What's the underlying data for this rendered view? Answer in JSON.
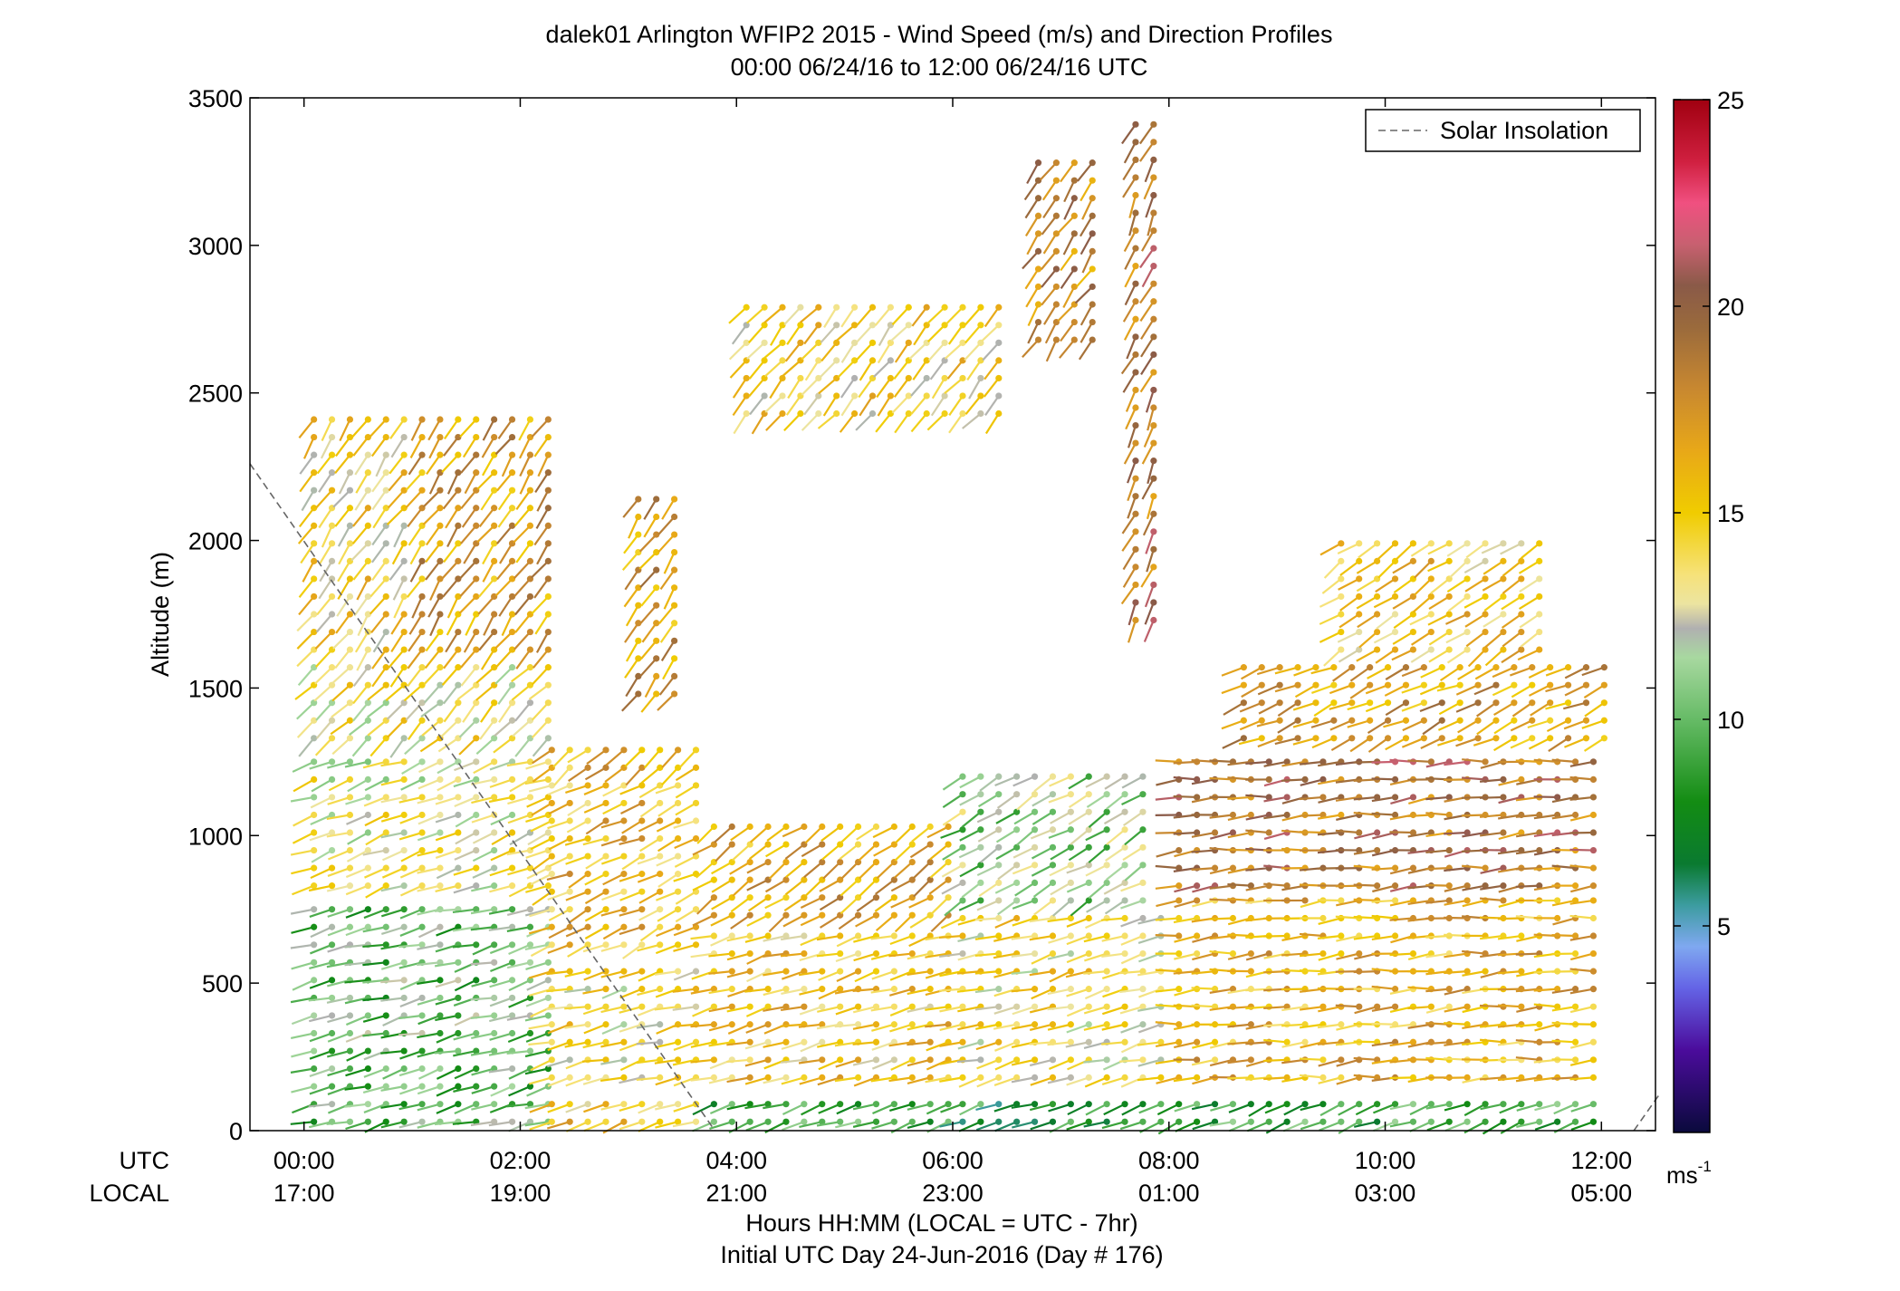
{
  "chart_data": {
    "type": "scatter",
    "title": "dalek01 Arlington WFIP2 2015 - Wind Speed (m/s) and Direction Profiles",
    "subtitle": "00:00 06/24/16 to 12:00 06/24/16  UTC",
    "ylabel": "Altitude (m)",
    "xlabel": "Hours HH:MM  (LOCAL = UTC - 7hr)",
    "xlabel2": "Initial UTC Day 24-Jun-2016 (Day # 176)",
    "ylim": [
      0,
      3500
    ],
    "xlim": [
      -0.5,
      12.5
    ],
    "y_ticks": [
      0,
      500,
      1000,
      1500,
      2000,
      2500,
      3000,
      3500
    ],
    "x_ticks": [
      {
        "hour": 0,
        "utc": "00:00",
        "local": "17:00"
      },
      {
        "hour": 2,
        "utc": "02:00",
        "local": "19:00"
      },
      {
        "hour": 4,
        "utc": "04:00",
        "local": "21:00"
      },
      {
        "hour": 6,
        "utc": "06:00",
        "local": "23:00"
      },
      {
        "hour": 8,
        "utc": "08:00",
        "local": "01:00"
      },
      {
        "hour": 10,
        "utc": "10:00",
        "local": "03:00"
      },
      {
        "hour": 12,
        "utc": "12:00",
        "local": "05:00"
      }
    ],
    "row_labels": {
      "utc": "UTC",
      "local": "LOCAL"
    },
    "legend": {
      "label": "Solar Insolation",
      "placement": "top-right"
    },
    "colorbar": {
      "min": 0,
      "max": 25,
      "ticks": [
        5,
        10,
        15,
        20,
        25
      ],
      "unit": "ms",
      "unit_sup": "-1",
      "stops": [
        {
          "v": 0,
          "c": "#0a0a3c"
        },
        {
          "v": 2,
          "c": "#4b0c9c"
        },
        {
          "v": 3.5,
          "c": "#6464e6"
        },
        {
          "v": 4.5,
          "c": "#7fa8f0"
        },
        {
          "v": 5.5,
          "c": "#3c9ca0"
        },
        {
          "v": 6.5,
          "c": "#0a7a30"
        },
        {
          "v": 8,
          "c": "#138c13"
        },
        {
          "v": 10,
          "c": "#66bb66"
        },
        {
          "v": 11.5,
          "c": "#a8d8a0"
        },
        {
          "v": 12.2,
          "c": "#b0b0b0"
        },
        {
          "v": 12.8,
          "c": "#ece4a0"
        },
        {
          "v": 13.5,
          "c": "#f6e27a"
        },
        {
          "v": 15,
          "c": "#f0cc00"
        },
        {
          "v": 16.5,
          "c": "#e8a818"
        },
        {
          "v": 18,
          "c": "#c88830"
        },
        {
          "v": 19.5,
          "c": "#9a6a3c"
        },
        {
          "v": 20.5,
          "c": "#8a5a48"
        },
        {
          "v": 21.5,
          "c": "#c86070"
        },
        {
          "v": 22.5,
          "c": "#f05080"
        },
        {
          "v": 23.5,
          "c": "#d02040"
        },
        {
          "v": 25,
          "c": "#a00010"
        }
      ]
    },
    "solar_insolation": [
      {
        "hour": -0.5,
        "alt": 2260
      },
      {
        "hour": 3.8,
        "alt": 0
      },
      {
        "hour": 12.3,
        "alt": 0
      },
      {
        "hour": 12.55,
        "alt": 130
      }
    ],
    "wind_regions": [
      {
        "t0": 0,
        "t1": 2.2,
        "a0": 0,
        "a1": 800,
        "speed": 10,
        "dir": 255
      },
      {
        "t0": 0,
        "t1": 2.2,
        "a0": 800,
        "a1": 1300,
        "speed": 13,
        "dir": 250
      },
      {
        "t0": 0,
        "t1": 2.2,
        "a0": 1300,
        "a1": 1600,
        "speed": 13.5,
        "dir": 225
      },
      {
        "t0": 0,
        "t1": 1.0,
        "a0": 1600,
        "a1": 2450,
        "speed": 14.5,
        "dir": 215
      },
      {
        "t0": 1.0,
        "t1": 2.2,
        "a0": 1600,
        "a1": 2450,
        "speed": 17,
        "dir": 215
      },
      {
        "t0": 2.2,
        "t1": 3.7,
        "a0": 0,
        "a1": 150,
        "speed": 15,
        "dir": 250
      },
      {
        "t0": 2.2,
        "t1": 3.7,
        "a0": 150,
        "a1": 600,
        "speed": 14,
        "dir": 255
      },
      {
        "t0": 2.2,
        "t1": 3.7,
        "a0": 600,
        "a1": 1200,
        "speed": 15.5,
        "dir": 245
      },
      {
        "t0": 2.2,
        "t1": 3.7,
        "a0": 1200,
        "a1": 1350,
        "speed": 16,
        "dir": 230
      },
      {
        "t0": 3.0,
        "t1": 3.4,
        "a0": 1450,
        "a1": 2150,
        "speed": 17,
        "dir": 215
      },
      {
        "t0": 3.7,
        "t1": 6.0,
        "a0": 0,
        "a1": 150,
        "speed": 9,
        "dir": 250
      },
      {
        "t0": 3.7,
        "t1": 6.0,
        "a0": 150,
        "a1": 700,
        "speed": 15,
        "dir": 255
      },
      {
        "t0": 3.7,
        "t1": 6.0,
        "a0": 700,
        "a1": 1050,
        "speed": 16.5,
        "dir": 235
      },
      {
        "t0": 4.0,
        "t1": 6.5,
        "a0": 2400,
        "a1": 2850,
        "speed": 14.5,
        "dir": 220
      },
      {
        "t0": 6.0,
        "t1": 8.0,
        "a0": 0,
        "a1": 150,
        "speed": 8,
        "dir": 250
      },
      {
        "t0": 6.0,
        "t1": 8.0,
        "a0": 150,
        "a1": 750,
        "speed": 14,
        "dir": 255
      },
      {
        "t0": 6.0,
        "t1": 7.7,
        "a0": 750,
        "a1": 1250,
        "speed": 11,
        "dir": 240
      },
      {
        "t0": 6.7,
        "t1": 7.3,
        "a0": 2650,
        "a1": 3300,
        "speed": 18,
        "dir": 215
      },
      {
        "t0": 7.6,
        "t1": 7.9,
        "a0": 1700,
        "a1": 3450,
        "speed": 19,
        "dir": 205
      },
      {
        "t0": 8.0,
        "t1": 12.0,
        "a0": 0,
        "a1": 150,
        "speed": 9,
        "dir": 250
      },
      {
        "t0": 8.0,
        "t1": 12.0,
        "a0": 150,
        "a1": 800,
        "speed": 16,
        "dir": 265
      },
      {
        "t0": 8.0,
        "t1": 12.0,
        "a0": 800,
        "a1": 1300,
        "speed": 19,
        "dir": 265
      },
      {
        "t0": 8.6,
        "t1": 12.0,
        "a0": 1300,
        "a1": 1600,
        "speed": 17,
        "dir": 245
      },
      {
        "t0": 9.5,
        "t1": 11.5,
        "a0": 1600,
        "a1": 2050,
        "speed": 15,
        "dir": 235
      }
    ]
  }
}
